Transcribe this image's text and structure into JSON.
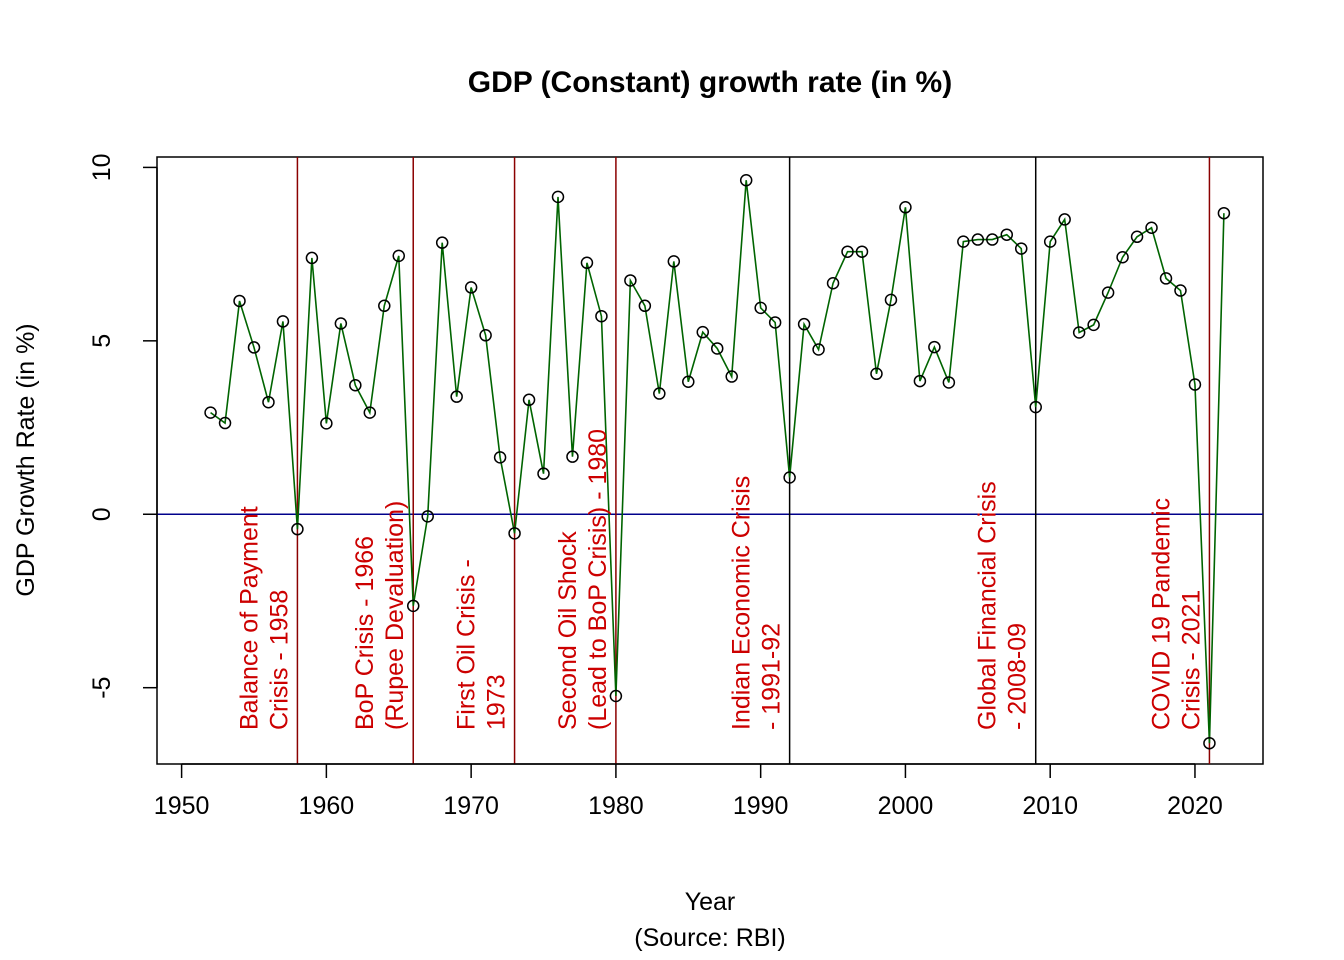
{
  "chart_data": {
    "type": "line",
    "title": "GDP (Constant) growth rate  (in %)",
    "xlabel": "Year",
    "source_note": "(Source: RBI)",
    "ylabel": "GDP Growth Rate (in %)",
    "xlim": [
      1948.3,
      2024.7
    ],
    "ylim": [
      -7.2,
      10.3
    ],
    "xticks": [
      1950,
      1960,
      1970,
      1980,
      1990,
      2000,
      2010,
      2020
    ],
    "yticks": [
      -5,
      0,
      5,
      10
    ],
    "grid": false,
    "markers": "open circles",
    "colors": {
      "line": "#006400",
      "zero_line": "#00008B",
      "crisis_red": "#8B0000",
      "crisis_black": "#000000",
      "label": "#CC0000"
    },
    "series": [
      {
        "x": [
          1952,
          1953,
          1954,
          1955,
          1956,
          1957,
          1958,
          1959,
          1960,
          1961,
          1962,
          1963,
          1964,
          1965,
          1966,
          1967,
          1968,
          1969,
          1970,
          1971,
          1972,
          1973,
          1974,
          1975,
          1976,
          1977,
          1978,
          1979,
          1980,
          1981,
          1982,
          1983,
          1984,
          1985,
          1986,
          1987,
          1988,
          1989,
          1990,
          1991,
          1992,
          1993,
          1994,
          1995,
          1996,
          1997,
          1998,
          1999,
          2000,
          2001,
          2002,
          2003,
          2004,
          2005,
          2006,
          2007,
          2008,
          2009,
          2010,
          2011,
          2012,
          2013,
          2014,
          2015,
          2016,
          2017,
          2018,
          2019,
          2020,
          2021,
          2022
        ],
        "y": [
          2.93,
          2.63,
          6.15,
          4.81,
          3.23,
          5.56,
          -0.43,
          7.39,
          2.62,
          5.5,
          3.72,
          2.93,
          6.01,
          7.45,
          -2.64,
          -0.06,
          7.83,
          3.39,
          6.54,
          5.16,
          1.64,
          -0.55,
          3.3,
          1.17,
          9.15,
          1.66,
          7.25,
          5.71,
          -5.24,
          6.74,
          6.01,
          3.48,
          7.29,
          3.82,
          5.25,
          4.78,
          3.97,
          9.63,
          5.95,
          5.53,
          1.06,
          5.48,
          4.75,
          6.66,
          7.57,
          7.57,
          4.05,
          6.18,
          8.85,
          3.84,
          4.82,
          3.8,
          7.86,
          7.92,
          7.92,
          8.06,
          7.66,
          3.09,
          7.86,
          8.5,
          5.24,
          5.46,
          6.39,
          7.41,
          8.0,
          8.26,
          6.8,
          6.45,
          3.74,
          -6.6,
          8.68
        ]
      }
    ],
    "reference_lines": [
      {
        "axis": "y",
        "value": 0,
        "color": "#00008B"
      },
      {
        "axis": "x",
        "value": 1958,
        "color": "#8B0000"
      },
      {
        "axis": "x",
        "value": 1966,
        "color": "#8B0000"
      },
      {
        "axis": "x",
        "value": 1973,
        "color": "#8B0000"
      },
      {
        "axis": "x",
        "value": 1980,
        "color": "#8B0000"
      },
      {
        "axis": "x",
        "value": 1992,
        "color": "#000000"
      },
      {
        "axis": "x",
        "value": 2009,
        "color": "#000000"
      },
      {
        "axis": "x",
        "value": 2021,
        "color": "#8B0000"
      }
    ],
    "annotations": [
      {
        "x": 1958,
        "lines": [
          "Balance of Payment",
          "Crisis - 1958"
        ]
      },
      {
        "x": 1966,
        "lines": [
          "BoP Crisis - 1966",
          "(Rupee Devaluation)"
        ]
      },
      {
        "x": 1973,
        "lines": [
          "First Oil Crisis -",
          "1973"
        ]
      },
      {
        "x": 1980,
        "lines": [
          "Second Oil Shock",
          "(Lead to BoP Crisis) - 1980"
        ]
      },
      {
        "x": 1992,
        "lines": [
          "Indian Economic Crisis",
          "- 1991-92"
        ]
      },
      {
        "x": 2009,
        "lines": [
          "Global Financial Crisis",
          "- 2008-09"
        ]
      },
      {
        "x": 2021,
        "lines": [
          "COVID 19 Pandemic",
          "Crisis - 2021"
        ]
      }
    ]
  }
}
